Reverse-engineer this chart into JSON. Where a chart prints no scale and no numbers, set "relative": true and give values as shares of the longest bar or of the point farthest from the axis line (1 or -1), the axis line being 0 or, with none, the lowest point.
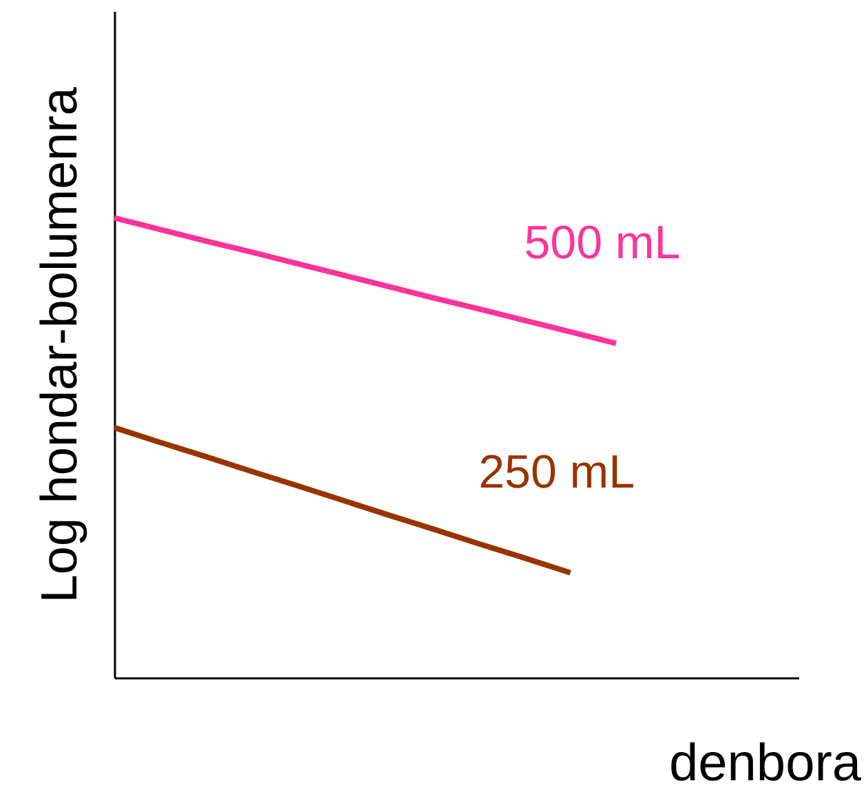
{
  "chart_data": {
    "type": "line",
    "relative": true,
    "ylabel": "Log hondar-bolumenra",
    "xlabel": "denbora",
    "tick_labels": false,
    "grid": false,
    "line_style": "solid",
    "marker": "none",
    "categories": [
      null,
      null,
      null,
      null,
      null,
      null,
      null,
      null,
      null,
      null,
      null,
      null,
      null,
      null,
      null,
      null
    ],
    "series": [
      {
        "name": "500 mL",
        "color": "#ff3399",
        "values": [
          1,
          0.975,
          0.95,
          0.926,
          0.901,
          0.876,
          0.851,
          0.826,
          0.802,
          0.777,
          0.752,
          0.727,
          null,
          null,
          null,
          null
        ]
      },
      {
        "name": "250 mL",
        "color": "#993300",
        "values": [
          0.544,
          0.512,
          0.481,
          0.449,
          0.418,
          0.386,
          0.354,
          0.323,
          0.291,
          0.26,
          0.228,
          null,
          null,
          null,
          null,
          null
        ]
      }
    ]
  }
}
